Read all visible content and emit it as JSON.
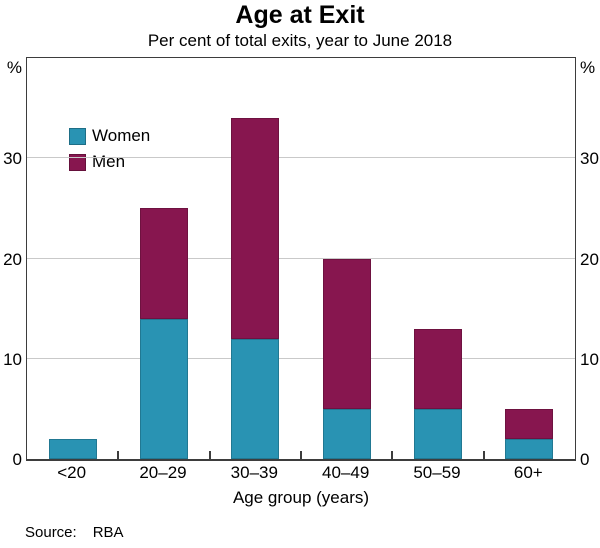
{
  "title": "Age at Exit",
  "subtitle": "Per cent of total exits, year to June 2018",
  "axes": {
    "unit_left": "%",
    "unit_right": "%",
    "x_title": "Age group (years)"
  },
  "footer": {
    "source_label": "Source:",
    "source_value": "RBA"
  },
  "colors": {
    "women": "#2993B3",
    "men": "#87164F",
    "gridline": "#c9c9c9",
    "frame": "#3d3d3d"
  },
  "chart_data": {
    "type": "bar",
    "stacked": true,
    "title": "Age at Exit",
    "subtitle": "Per cent of total exits, year to June 2018",
    "xlabel": "Age group (years)",
    "ylabel": "%",
    "categories": [
      "<20",
      "20–29",
      "30–39",
      "40–49",
      "50–59",
      "60+"
    ],
    "series": [
      {
        "name": "Women",
        "color": "#2993B3",
        "values": [
          2,
          14,
          12,
          5,
          5,
          2
        ]
      },
      {
        "name": "Men",
        "color": "#87164F",
        "values": [
          0,
          11,
          22,
          15,
          8,
          3
        ]
      }
    ],
    "ylim": [
      0,
      40
    ],
    "y_ticks": [
      0,
      10,
      20,
      30
    ],
    "gridlines": [
      10,
      20,
      30
    ],
    "grid": true,
    "legend_position": "top-left",
    "source": "RBA"
  }
}
